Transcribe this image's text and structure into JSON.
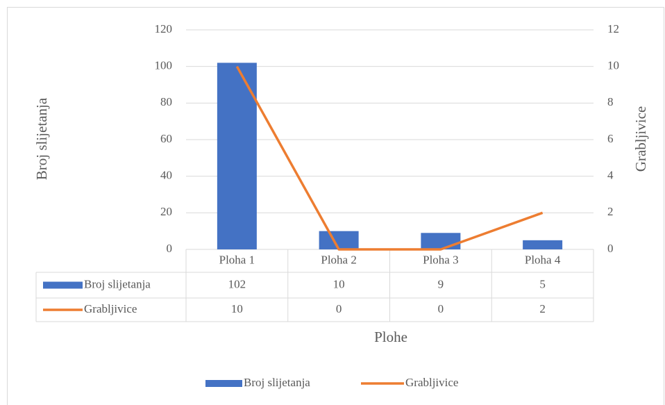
{
  "chart_data": {
    "type": "bar-line",
    "categories": [
      "Ploha 1",
      "Ploha 2",
      "Ploha 3",
      "Ploha 4"
    ],
    "series": [
      {
        "name": "Broj slijetanja",
        "color": "#4472c4",
        "type": "bar",
        "values": [
          102,
          10,
          9,
          5
        ]
      },
      {
        "name": "Grabljivice",
        "color": "#ed7d31",
        "type": "line",
        "axis": "y2",
        "values": [
          10,
          0,
          0,
          2
        ]
      }
    ],
    "ylim": [
      0,
      120
    ],
    "yticks": [
      0,
      20,
      40,
      60,
      80,
      100,
      120
    ],
    "y2lim": [
      0,
      12
    ],
    "y2ticks": [
      0,
      2,
      4,
      6,
      8,
      10,
      12
    ],
    "ylabel": "Broj slijetanja",
    "y2label": "Grabljivice",
    "xlabel": "Plohe",
    "grid": true,
    "legend": "bottom"
  }
}
